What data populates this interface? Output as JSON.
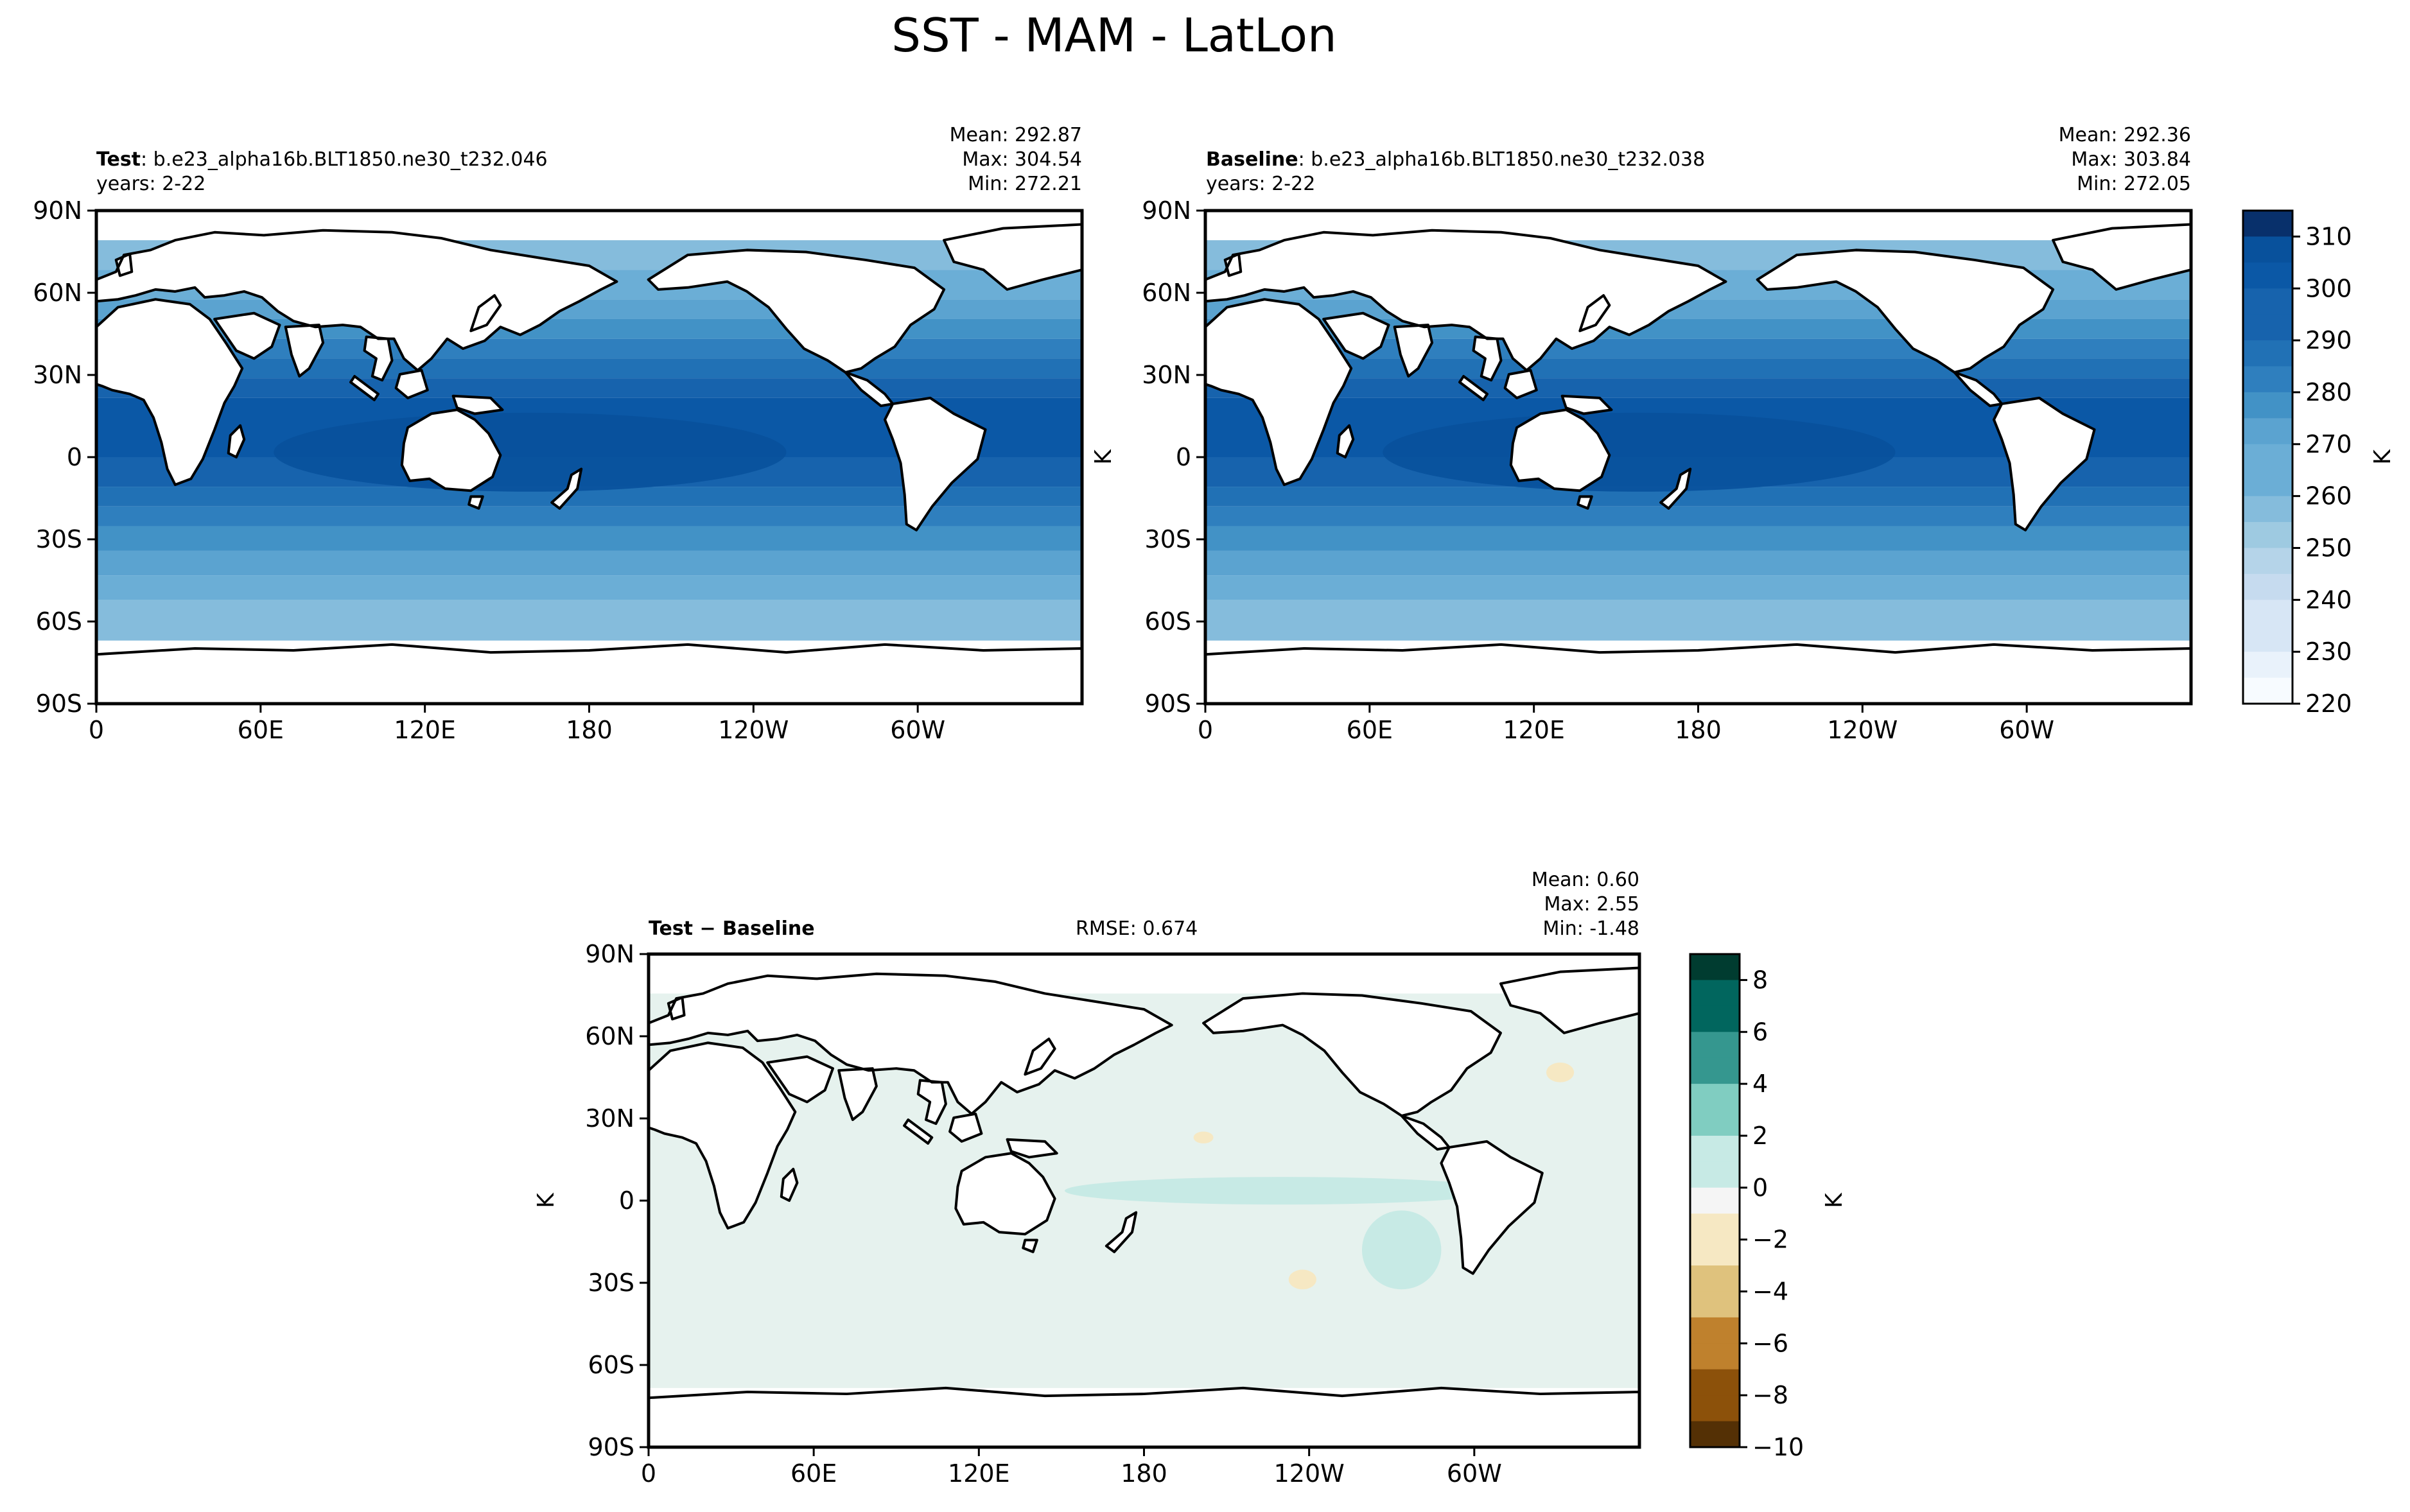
{
  "title": "SST - MAM - LatLon",
  "colors": {
    "ocean_sst": [
      "#08306b",
      "#08519c",
      "#0b58a6",
      "#1763ad",
      "#2171b5",
      "#2f7fbe",
      "#4292c6",
      "#5ba3d0",
      "#6baed6",
      "#85bcdc",
      "#9ecae1",
      "#b5d4e9",
      "#c6dbef",
      "#d7e6f5",
      "#e9f2fb",
      "#f7fbff"
    ],
    "diff": [
      "#003c30",
      "#01665e",
      "#35978f",
      "#80cdc1",
      "#c7eae5",
      "#f5f5f5",
      "#f6e8c3",
      "#dfc27d",
      "#bf812d",
      "#8c510a",
      "#543005"
    ],
    "land": "#ffffff",
    "coast": "#000000",
    "diff_fill": "#e6f2ee",
    "diff_pos": "#c7eae5",
    "diff_neg": "#f6e8c3"
  },
  "panels": [
    {
      "id": "test",
      "label_bold": "Test",
      "label_rest": ": b.e23_alpha16b.BLT1850.ne30_t232.046",
      "years": "years: 2-22",
      "stats": [
        "Mean: 292.87",
        "Max: 304.54",
        "Min: 272.21"
      ],
      "ylabel": "",
      "xticks": [
        "0",
        "60E",
        "120E",
        "180",
        "120W",
        "60W"
      ],
      "yticks": [
        "90N",
        "60N",
        "30N",
        "0",
        "30S",
        "60S",
        "90S"
      ]
    },
    {
      "id": "baseline",
      "label_bold": "Baseline",
      "label_rest": ": b.e23_alpha16b.BLT1850.ne30_t232.038",
      "years": "years: 2-22",
      "stats": [
        "Mean: 292.36",
        "Max: 303.84",
        "Min: 272.05"
      ],
      "ylabel": "K",
      "xticks": [
        "0",
        "60E",
        "120E",
        "180",
        "120W",
        "60W"
      ],
      "yticks": [
        "90N",
        "60N",
        "30N",
        "0",
        "30S",
        "60S",
        "90S"
      ]
    },
    {
      "id": "diff",
      "label_bold": "Test − Baseline",
      "rmse": "RMSE: 0.674",
      "stats": [
        "Mean:  0.60",
        "Max:  2.55",
        "Min: -1.48"
      ],
      "ylabel": "K",
      "xticks": [
        "0",
        "60E",
        "120E",
        "180",
        "120W",
        "60W"
      ],
      "yticks": [
        "90N",
        "60N",
        "30N",
        "0",
        "30S",
        "60S",
        "90S"
      ]
    }
  ],
  "colorbar_sst": {
    "label": "K",
    "ticks": [
      "310",
      "300",
      "290",
      "280",
      "270",
      "260",
      "250",
      "240",
      "230",
      "220"
    ],
    "min": 220,
    "max": 315,
    "levels": 19
  },
  "colorbar_diff": {
    "label": "K",
    "ticks": [
      "8",
      "6",
      "4",
      "2",
      "0",
      "−2",
      "−4",
      "−6",
      "−8",
      "−10"
    ],
    "min": -10,
    "max": 9,
    "levels": 19
  }
}
